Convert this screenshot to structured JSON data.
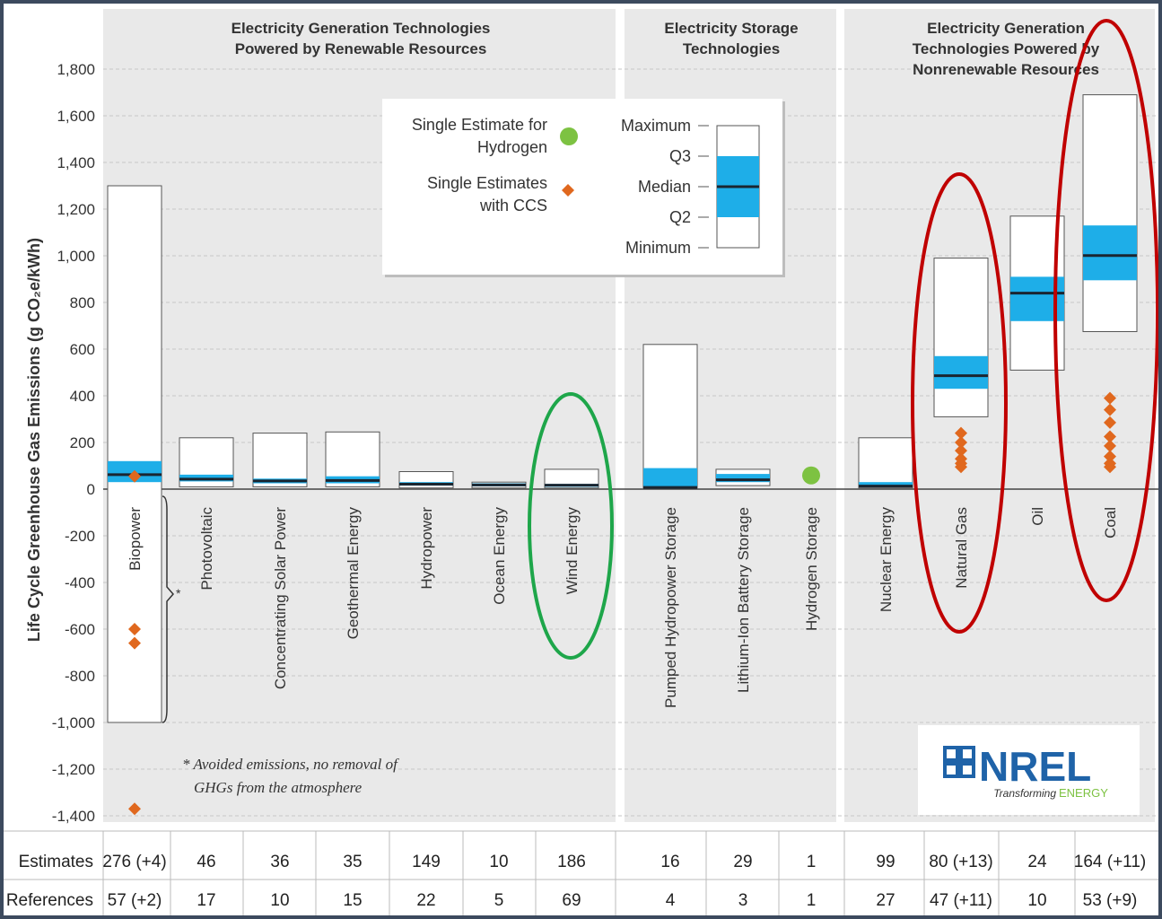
{
  "chart_data": {
    "type": "box",
    "ylabel": "Life Cycle Greenhouse Gas Emissions (g CO₂e/kWh)",
    "ylim": [
      -1400,
      1900
    ],
    "yticks": [
      1800,
      1600,
      1400,
      1200,
      1000,
      800,
      600,
      400,
      200,
      0,
      -200,
      -400,
      -600,
      -800,
      -1000,
      -1200,
      -1400
    ],
    "ytick_labels": [
      "1,800",
      "1,600",
      "1,400",
      "1,200",
      "1,000",
      "800",
      "600",
      "400",
      "200",
      "0",
      "-200",
      "-400",
      "-600",
      "-800",
      "-1,000",
      "-1,200",
      "-1,400"
    ],
    "grid": true,
    "groups": [
      {
        "title_lines": [
          "Electricity Generation Technologies",
          "Powered by Renewable Resources"
        ]
      },
      {
        "title_lines": [
          "Electricity Storage",
          "Technologies"
        ]
      },
      {
        "title_lines": [
          "Electricity Generation",
          "Technologies Powered by",
          "Nonrenewable Resources"
        ]
      }
    ],
    "categories": [
      {
        "name": "Biopower",
        "min": -1000,
        "q2": 30,
        "median": 62,
        "q3": 120,
        "max": 1300,
        "ccs": [
          55,
          -600,
          -660,
          -1370
        ],
        "estimates": "276 (+4)",
        "references": "57 (+2)"
      },
      {
        "name": "Photovoltaic",
        "min": 10,
        "q2": 33,
        "median": 43,
        "q3": 62,
        "max": 220,
        "estimates": "46",
        "references": "17"
      },
      {
        "name": "Concentrating Solar Power",
        "min": 10,
        "q2": 25,
        "median": 35,
        "q3": 45,
        "max": 240,
        "estimates": "36",
        "references": "10"
      },
      {
        "name": "Geothermal Energy",
        "min": 10,
        "q2": 25,
        "median": 37,
        "q3": 55,
        "max": 245,
        "estimates": "35",
        "references": "15"
      },
      {
        "name": "Hydropower",
        "min": 5,
        "q2": 15,
        "median": 21,
        "q3": 30,
        "max": 75,
        "estimates": "149",
        "references": "22"
      },
      {
        "name": "Ocean Energy",
        "min": 5,
        "q2": 12,
        "median": 18,
        "q3": 25,
        "max": 30,
        "estimates": "10",
        "references": "5"
      },
      {
        "name": "Wind Energy",
        "min": 5,
        "q2": 10,
        "median": 17,
        "q3": 22,
        "max": 85,
        "estimates": "186",
        "references": "69"
      },
      {
        "name": "Pumped Hydropower Storage",
        "min": 5,
        "q2": 5,
        "median": 7,
        "q3": 90,
        "max": 620,
        "estimates": "16",
        "references": "4"
      },
      {
        "name": "Lithium-Ion Battery Storage",
        "min": 15,
        "q2": 30,
        "median": 40,
        "q3": 65,
        "max": 85,
        "estimates": "29",
        "references": "3"
      },
      {
        "name": "Hydrogen Storage",
        "single": 55,
        "estimates": "1",
        "references": "1"
      },
      {
        "name": "Nuclear Energy",
        "min": 5,
        "q2": 10,
        "median": 13,
        "q3": 30,
        "max": 220,
        "estimates": "99",
        "references": "27"
      },
      {
        "name": "Natural Gas",
        "min": 310,
        "q2": 430,
        "median": 486,
        "q3": 570,
        "max": 990,
        "ccs": [
          240,
          200,
          165,
          130,
          110,
          95
        ],
        "estimates": "80 (+13)",
        "references": "47 (+11)"
      },
      {
        "name": "Oil",
        "min": 510,
        "q2": 720,
        "median": 840,
        "q3": 910,
        "max": 1170,
        "estimates": "24",
        "references": "10"
      },
      {
        "name": "Coal",
        "min": 675,
        "q2": 895,
        "median": 1001,
        "q3": 1130,
        "max": 1690,
        "ccs": [
          390,
          340,
          285,
          225,
          185,
          140,
          110,
          95
        ],
        "estimates": "164 (+11)",
        "references": "53 (+9)"
      }
    ],
    "table_row_labels": [
      "Estimates",
      "References"
    ],
    "legend": {
      "hydrogen_line1": "Single Estimate for",
      "hydrogen_line2": "Hydrogen",
      "ccs_line1": "Single Estimates",
      "ccs_line2": "with CCS",
      "box_labels": [
        "Maximum",
        "Q3",
        "Median",
        "Q2",
        "Minimum"
      ]
    },
    "footnote_lines": [
      "* Avoided emissions, no removal of",
      "GHGs from the atmosphere"
    ],
    "colors": {
      "iqr": "#1eaee8",
      "median": "#1a2530",
      "ccs": "#e0681e",
      "hydrogen": "#7dc242",
      "panel": "#e9e9e9",
      "green_circle": "#1ea64a",
      "red_circle": "#c00000"
    }
  },
  "logo": {
    "name": "NREL",
    "tagline_1": "Transforming",
    "tagline_2": "ENERGY"
  }
}
